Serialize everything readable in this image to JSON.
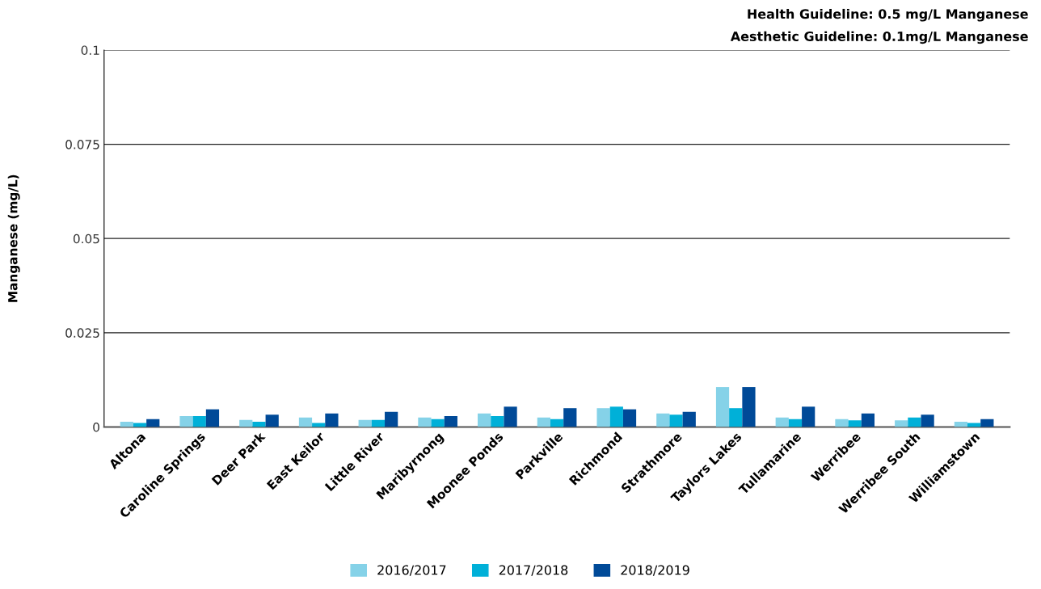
{
  "chart_data": {
    "type": "bar",
    "annotations": [
      "Health Guideline: 0.5 mg/L Manganese",
      "Aesthetic Guideline: 0.1mg/L Manganese"
    ],
    "ylabel": "Manganese (mg/L)",
    "categories": [
      "Altona",
      "Caroline Springs",
      "Deer Park",
      "East Keilor",
      "Little River",
      "Maribyrnong",
      "Moonee Ponds",
      "Parkville",
      "Richmond",
      "Strathmore",
      "Taylors Lakes",
      "Tullamarine",
      "Werribee",
      "Werribee South",
      "Williamstown"
    ],
    "series": [
      {
        "name": "2016/2017",
        "color": "#85d2e8",
        "values": [
          0.0014,
          0.0029,
          0.0019,
          0.0025,
          0.0019,
          0.0025,
          0.0036,
          0.0025,
          0.005,
          0.0036,
          0.0106,
          0.0025,
          0.0021,
          0.0018,
          0.0014
        ]
      },
      {
        "name": "2017/2018",
        "color": "#00b0d8",
        "values": [
          0.0011,
          0.0029,
          0.0014,
          0.0011,
          0.0019,
          0.0021,
          0.0029,
          0.0021,
          0.0054,
          0.0033,
          0.005,
          0.0021,
          0.0018,
          0.0025,
          0.0011
        ]
      },
      {
        "name": "2018/2019",
        "color": "#004a98",
        "values": [
          0.0021,
          0.0047,
          0.0033,
          0.0036,
          0.004,
          0.0029,
          0.0054,
          0.005,
          0.0047,
          0.004,
          0.0106,
          0.0054,
          0.0036,
          0.0033,
          0.0021
        ]
      }
    ],
    "ylim": [
      0,
      0.1
    ],
    "yticks": [
      0,
      0.025,
      0.05,
      0.075,
      0.1
    ],
    "grid": "y",
    "legend": "bottom"
  }
}
